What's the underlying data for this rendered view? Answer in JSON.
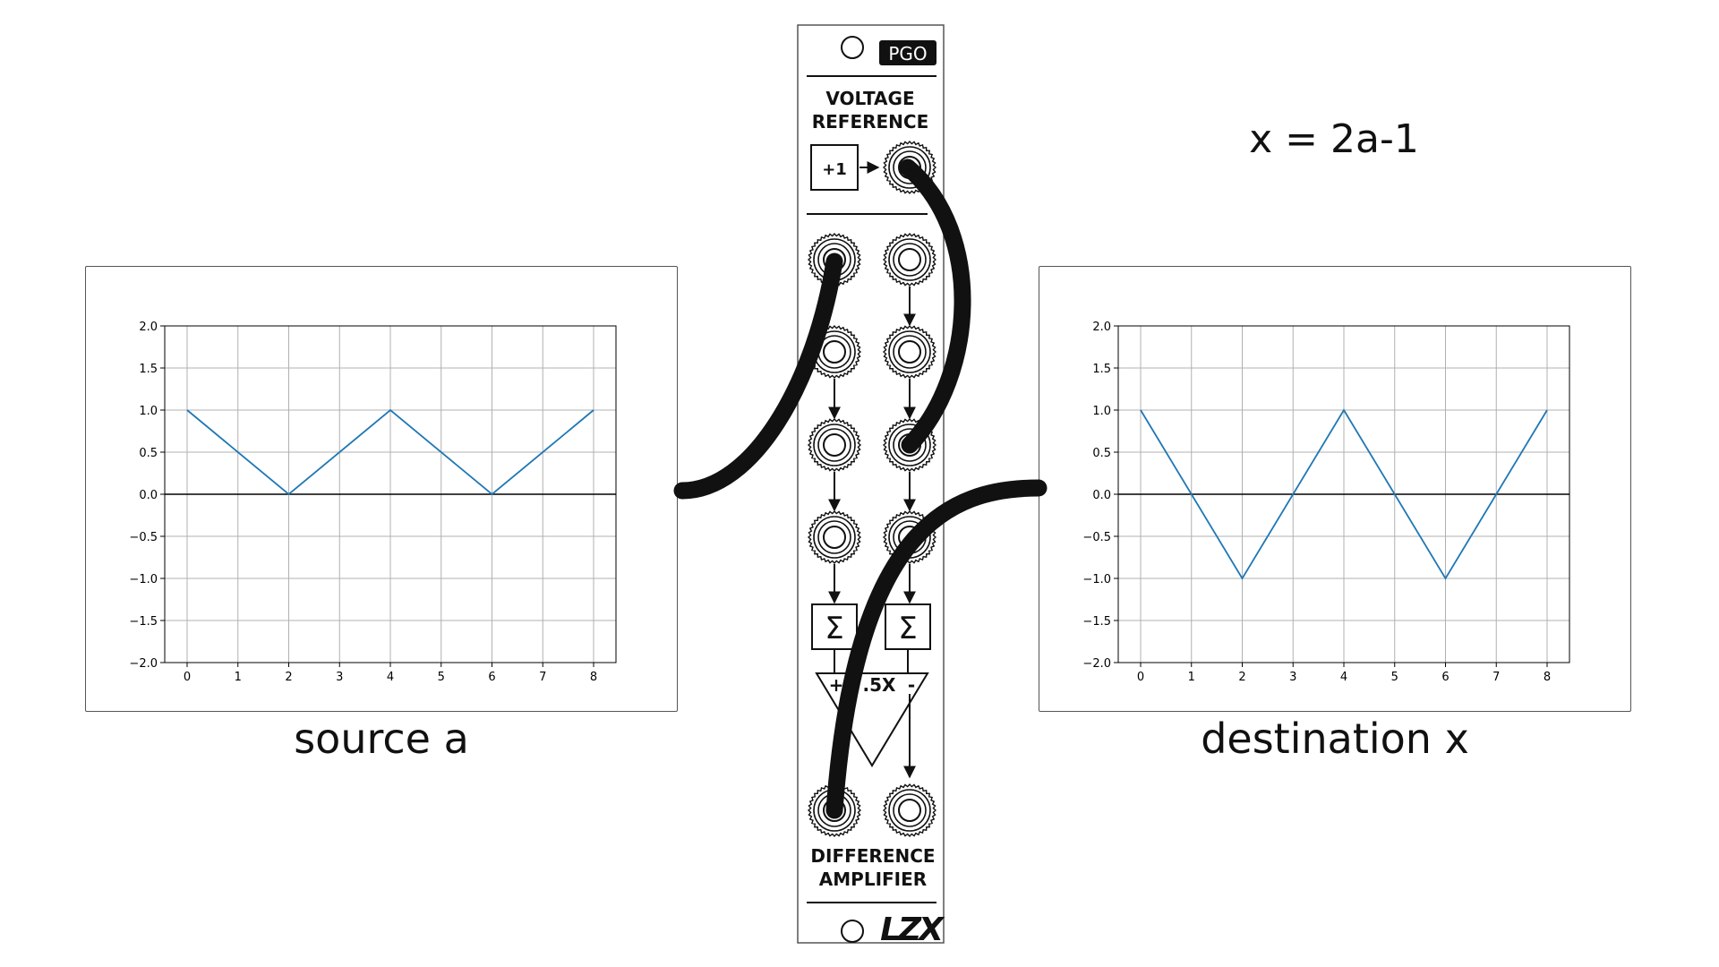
{
  "formula": "x = 2a-1",
  "module": {
    "badge": "PGO",
    "top_label_line1": "VOLTAGE",
    "top_label_line2": "REFERENCE",
    "ref_box_label": "+1",
    "sum_symbol": "Σ",
    "amp_plus": "+",
    "amp_gain": ".5X",
    "amp_minus": "-",
    "bottom_label_line1": "DIFFERENCE",
    "bottom_label_line2": "AMPLIFIER",
    "logo": "LZX"
  },
  "source_caption": "source a",
  "destination_caption": "destination x",
  "chart_data": [
    {
      "id": "source",
      "type": "line",
      "x": [
        0,
        2,
        4,
        6,
        8
      ],
      "y": [
        1.0,
        0.0,
        1.0,
        0.0,
        1.0
      ],
      "xlim": [
        0,
        8
      ],
      "ylim": [
        -2.0,
        2.0
      ],
      "xticks": [
        "0",
        "1",
        "2",
        "3",
        "4",
        "5",
        "6",
        "7",
        "8"
      ],
      "yticks": [
        "2.0",
        "1.5",
        "1.0",
        "0.5",
        "0.0",
        "−0.5",
        "−1.0",
        "−1.5",
        "−2.0"
      ],
      "grid": true,
      "zero_line": true,
      "line_color": "#1f77b4"
    },
    {
      "id": "destination",
      "type": "line",
      "x": [
        0,
        2,
        4,
        6,
        8
      ],
      "y": [
        1.0,
        -1.0,
        1.0,
        -1.0,
        1.0
      ],
      "xlim": [
        0,
        8
      ],
      "ylim": [
        -2.0,
        2.0
      ],
      "xticks": [
        "0",
        "1",
        "2",
        "3",
        "4",
        "5",
        "6",
        "7",
        "8"
      ],
      "yticks": [
        "2.0",
        "1.5",
        "1.0",
        "0.5",
        "0.0",
        "−0.5",
        "−1.0",
        "−1.5",
        "−2.0"
      ],
      "grid": true,
      "zero_line": true,
      "line_color": "#1f77b4"
    }
  ]
}
